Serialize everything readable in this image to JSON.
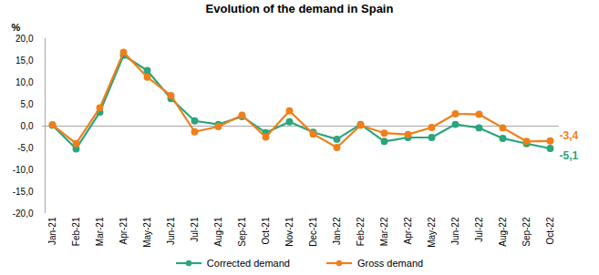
{
  "chart_data": {
    "type": "line",
    "title": "Evolution of the demand in Spain",
    "y_label": "%",
    "categories": [
      "Jan-21",
      "Feb-21",
      "Mar-21",
      "Apr-21",
      "May-21",
      "Jun-21",
      "Jul-21",
      "Aug-21",
      "Sep-21",
      "Oct-21",
      "Nov-21",
      "Dec-21",
      "Jan-22",
      "Feb-22",
      "Mar-22",
      "Apr-22",
      "May-22",
      "Jun-22",
      "Jul-22",
      "Aug-22",
      "Sep-22",
      "Oct-22"
    ],
    "series": [
      {
        "name": "Corrected demand",
        "color": "#2aa57e",
        "marker": "circle",
        "values": [
          0.2,
          -5.2,
          3.2,
          16.2,
          12.7,
          6.3,
          1.2,
          0.4,
          2.2,
          -1.5,
          1.0,
          -1.4,
          -3.0,
          0.4,
          -3.5,
          -2.6,
          -2.6,
          0.4,
          -0.4,
          -2.8,
          -4.0,
          -5.1
        ],
        "value_labels": [
          null,
          null,
          null,
          null,
          null,
          null,
          null,
          null,
          null,
          null,
          null,
          null,
          null,
          null,
          null,
          null,
          null,
          null,
          null,
          null,
          null,
          "-5,1"
        ]
      },
      {
        "name": "Gross demand",
        "color": "#f07f1a",
        "marker": "circle",
        "values": [
          0.3,
          -4.0,
          4.2,
          16.9,
          11.2,
          7.0,
          -1.3,
          -0.1,
          2.5,
          -2.5,
          3.5,
          -1.8,
          -4.9,
          0.2,
          -1.6,
          -1.9,
          -0.3,
          2.8,
          2.7,
          -0.4,
          -3.5,
          -3.4
        ],
        "value_labels": [
          null,
          null,
          null,
          null,
          null,
          null,
          null,
          null,
          null,
          null,
          null,
          null,
          null,
          null,
          null,
          null,
          null,
          null,
          null,
          null,
          null,
          "-3,4"
        ]
      }
    ],
    "ylim": [
      -20,
      20
    ],
    "yticks": [
      {
        "value": -20,
        "label": "-20,0"
      },
      {
        "value": -15,
        "label": "-15,0"
      },
      {
        "value": -10,
        "label": "-10,0"
      },
      {
        "value": -5,
        "label": "-5,0"
      },
      {
        "value": 0,
        "label": "0,0"
      },
      {
        "value": 5,
        "label": "5,0"
      },
      {
        "value": 10,
        "label": "10,0"
      },
      {
        "value": 15,
        "label": "15,0"
      },
      {
        "value": 20,
        "label": "20,0"
      }
    ],
    "grid": false,
    "legend": "bottom"
  }
}
